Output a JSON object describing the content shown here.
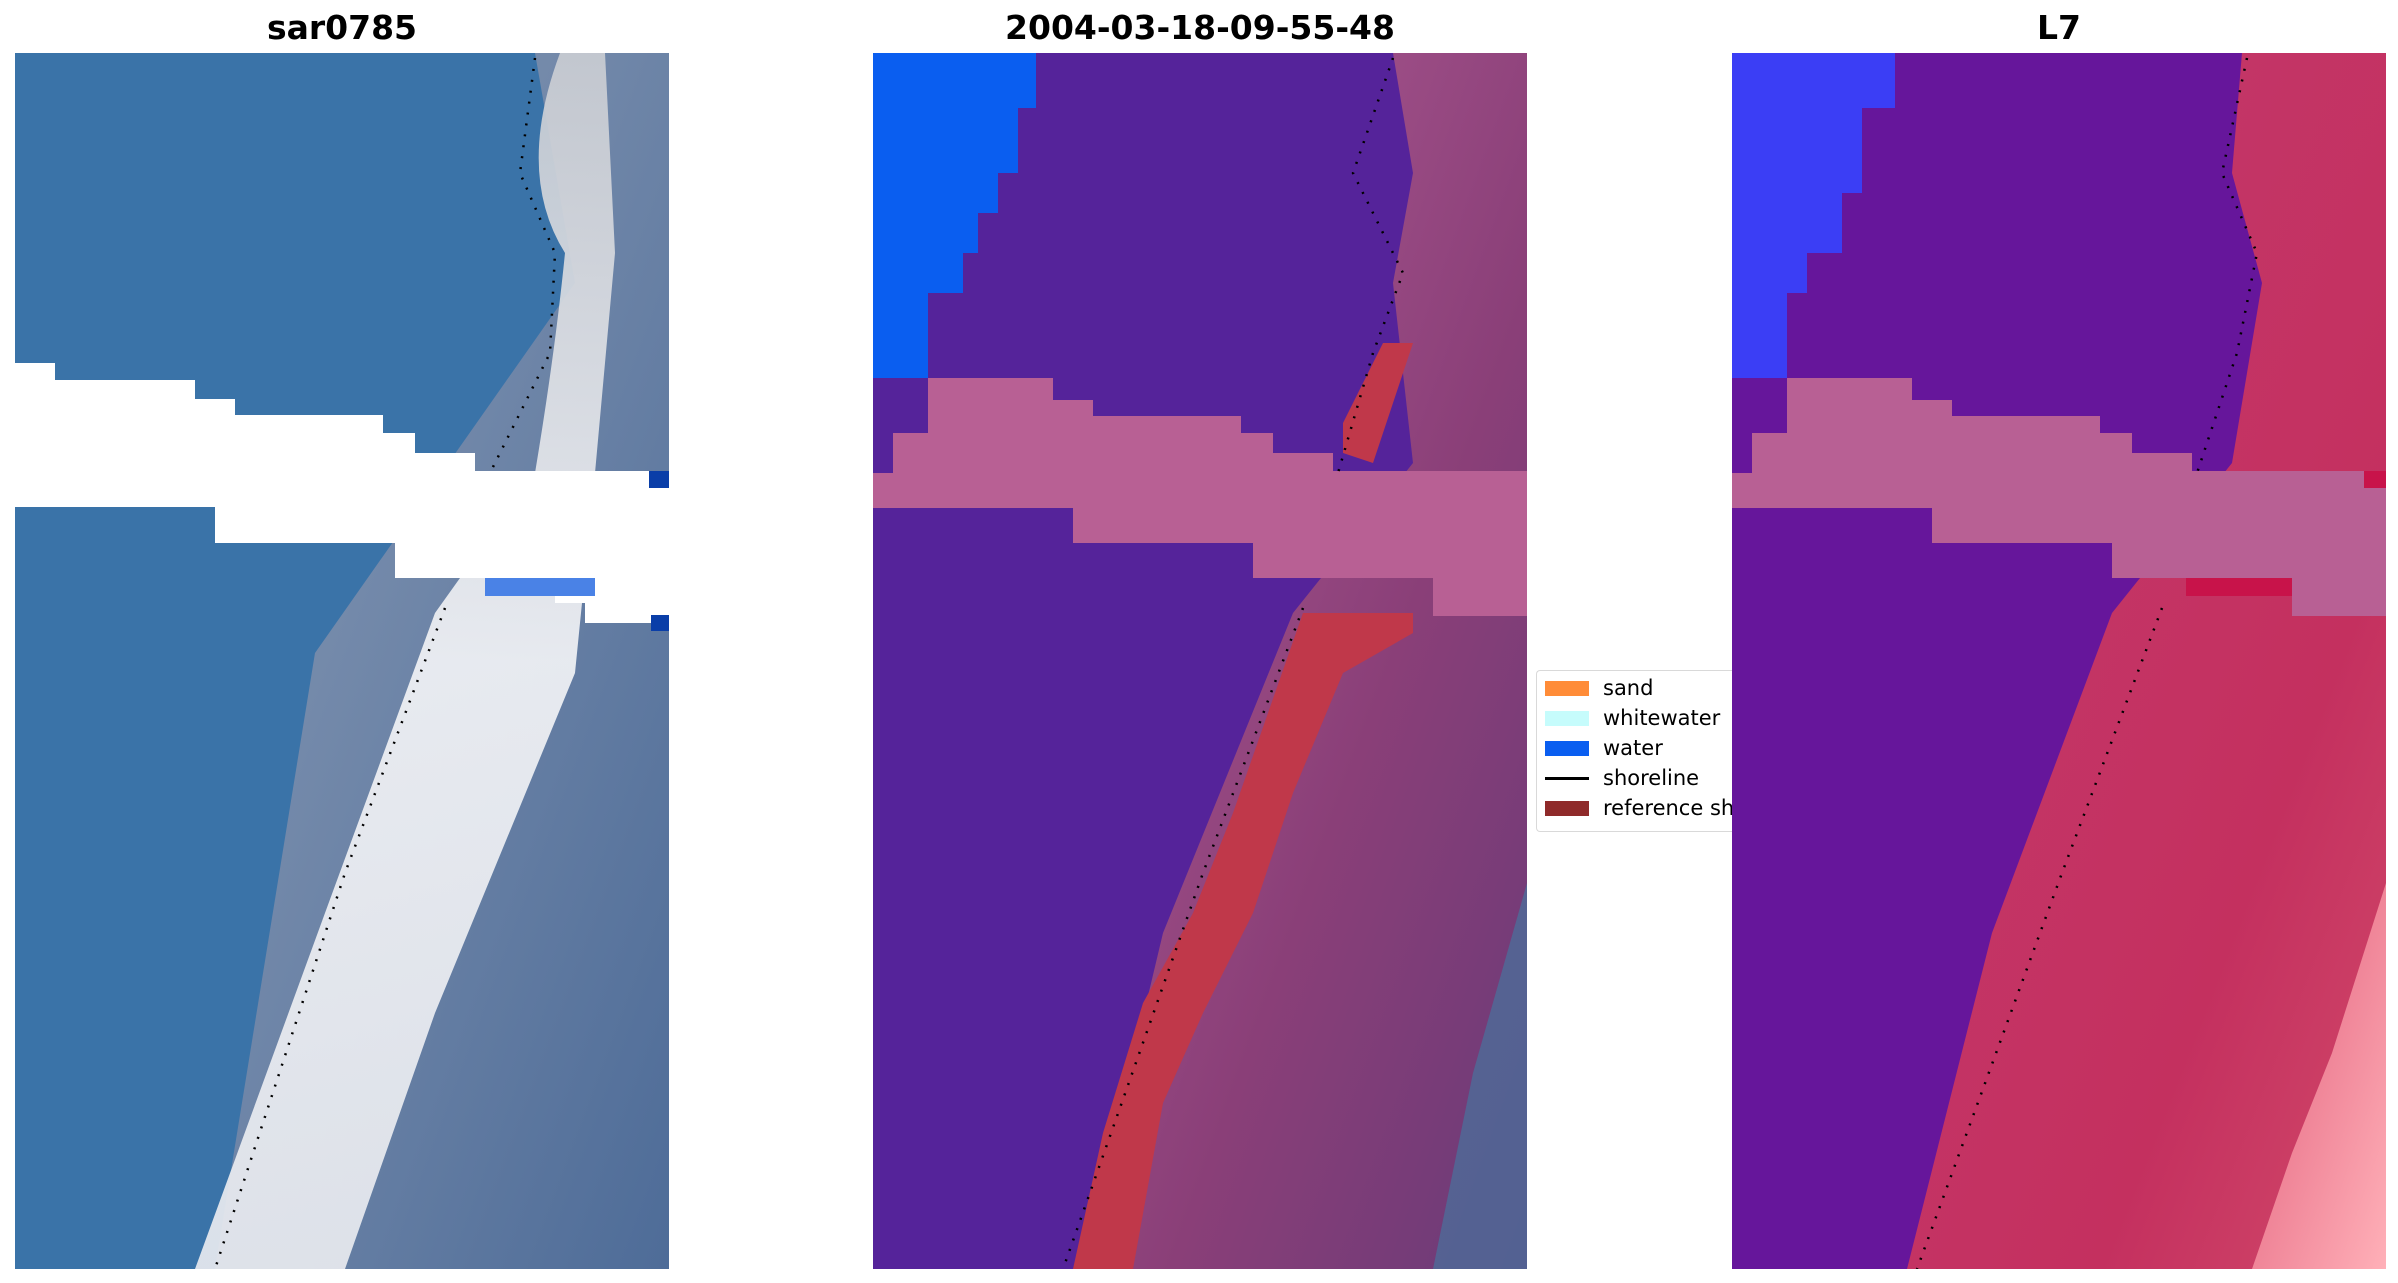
{
  "panels": [
    {
      "title": "sar0785",
      "content": "satellite RGB crop"
    },
    {
      "title": "2004-03-18-09-55-48",
      "content": "classified image overlay"
    },
    {
      "title": "L7",
      "content": "water index image"
    }
  ],
  "legend": {
    "items": [
      {
        "label": "sand",
        "color": "#ff8c38",
        "kind": "patch"
      },
      {
        "label": "whitewater",
        "color": "#c6fcfc",
        "kind": "patch"
      },
      {
        "label": "water",
        "color": "#0a5ef0",
        "kind": "patch"
      },
      {
        "label": "shoreline",
        "color": "#000000",
        "kind": "line"
      },
      {
        "label": "reference sh",
        "color": "#8f2a2a",
        "kind": "patch"
      }
    ]
  },
  "colors": {
    "rgb_water": "#3a73a8",
    "rgb_whitewater": "#eef0f4",
    "rgb_land": "#5873a0",
    "class_water_overlay": "#55239a",
    "class_land": "#9a4a86",
    "class_band": "#b86094",
    "class_blue": "#0a5ef0",
    "class_red": "#c0384a",
    "index_water": "#66169b",
    "index_land": "#c4305f",
    "index_band": "#b86094",
    "index_blue": "#3b3ef5",
    "nodata": "#ffffff",
    "shoreline": "#000000"
  }
}
